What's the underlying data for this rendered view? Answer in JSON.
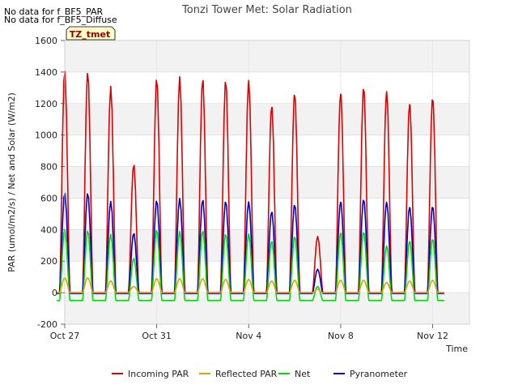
{
  "notices": [
    "No data for f_BF5_PAR",
    "No data for f_BF5_Diffuse"
  ],
  "tag_label": "TZ_tmet",
  "chart_data": {
    "type": "line",
    "title": "Tonzi Tower Met: Solar Radiation",
    "xlabel": "Time",
    "ylabel": "PAR (umol/m2/s) / Net and Solar (W/m2)",
    "xlim": [
      0,
      17.6
    ],
    "ylim": [
      -200,
      1600
    ],
    "yticks": [
      -200,
      0,
      200,
      400,
      600,
      800,
      1000,
      1200,
      1400,
      1600
    ],
    "xticks": [
      {
        "value": 0,
        "label": "Oct 27"
      },
      {
        "value": 4,
        "label": "Oct 31"
      },
      {
        "value": 8,
        "label": "Nov 4"
      },
      {
        "value": 12,
        "label": "Nov 8"
      },
      {
        "value": 16,
        "label": "Nov 12"
      }
    ],
    "grid": true,
    "legend_position": "bottom",
    "days": [
      0,
      1,
      2,
      3,
      4,
      5,
      6,
      7,
      8,
      9,
      10,
      11,
      12,
      13,
      14,
      15,
      16
    ],
    "series": [
      {
        "name": "Incoming PAR",
        "color": "#e00000",
        "night": 0,
        "peaks": [
          1425,
          1410,
          1310,
          820,
          1370,
          1375,
          1370,
          1360,
          1355,
          1200,
          1280,
          360,
          1285,
          1320,
          1290,
          1215,
          1255
        ]
      },
      {
        "name": "Reflected PAR",
        "color": "#e8a000",
        "night": 0,
        "peaks": [
          95,
          95,
          75,
          40,
          90,
          90,
          90,
          85,
          85,
          75,
          80,
          20,
          80,
          80,
          65,
          75,
          80
        ]
      },
      {
        "name": "Net",
        "color": "#00dd00",
        "night": -50,
        "peaks": [
          405,
          395,
          370,
          220,
          400,
          390,
          395,
          375,
          375,
          330,
          360,
          40,
          385,
          390,
          300,
          330,
          345
        ]
      },
      {
        "name": "Pyranometer",
        "color": "#0000cc",
        "night": -5,
        "peaks": [
          640,
          635,
          580,
          380,
          590,
          600,
          595,
          585,
          580,
          520,
          565,
          150,
          585,
          600,
          580,
          550,
          555
        ]
      }
    ]
  }
}
